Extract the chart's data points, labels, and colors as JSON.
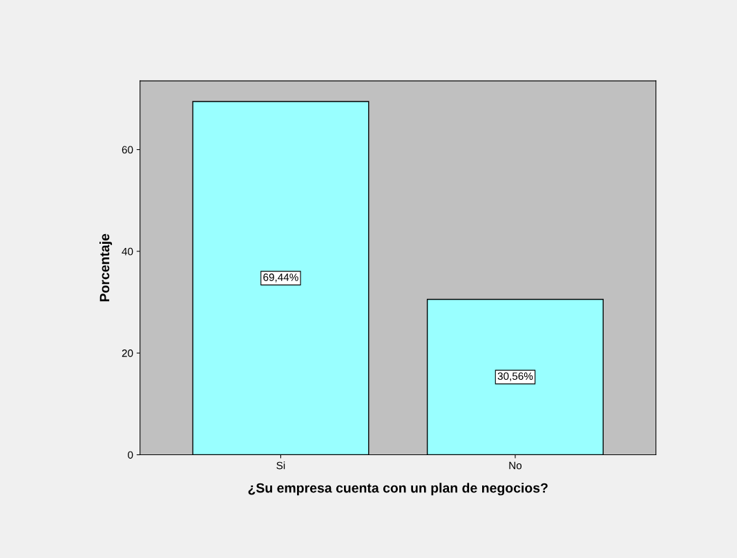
{
  "chart_data": {
    "type": "bar",
    "xlabel": "¿Su empresa cuenta con un plan de negocios?",
    "ylabel": "Porcentaje",
    "categories": [
      "Si",
      "No"
    ],
    "values": [
      69.44,
      30.56
    ],
    "value_labels": [
      "69,44%",
      "30,56%"
    ],
    "color": "#99ffff",
    "ylim": [
      0,
      73.5
    ],
    "yticks": [
      0,
      20,
      40,
      60
    ],
    "grid": false,
    "legend": false
  }
}
